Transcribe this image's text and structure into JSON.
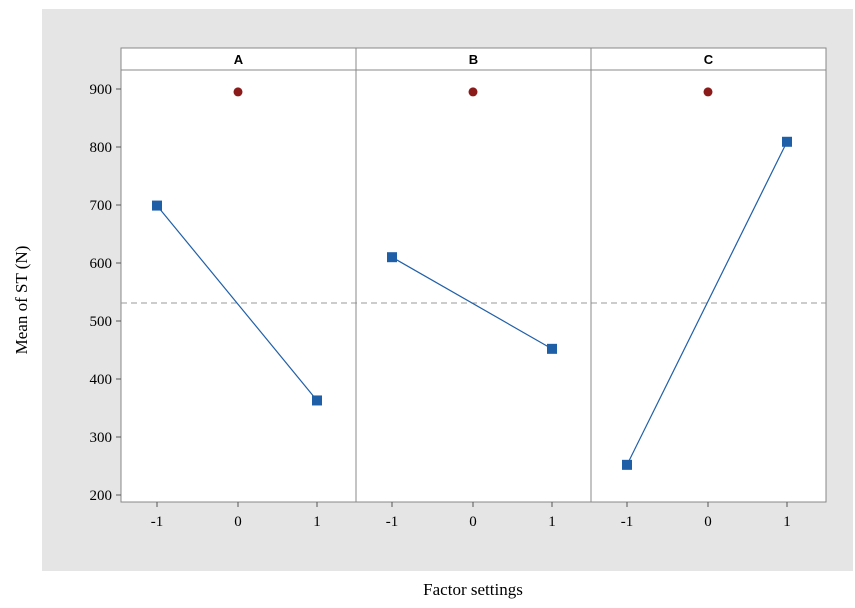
{
  "chart_data": {
    "type": "line",
    "xlabel": "Factor settings",
    "ylabel": "Mean of ST (N)",
    "ylim": [
      190,
      930
    ],
    "yticks": [
      200,
      300,
      400,
      500,
      600,
      700,
      800,
      900
    ],
    "xticks": [
      "-1",
      "0",
      "1"
    ],
    "xlim": [
      -1.5,
      1.5
    ],
    "reference_line": 531,
    "panels": [
      {
        "title": "A",
        "series": {
          "x": [
            -1,
            1
          ],
          "y": [
            699,
            363
          ]
        },
        "center_point": {
          "x": 0,
          "y": 895
        }
      },
      {
        "title": "B",
        "series": {
          "x": [
            -1,
            1
          ],
          "y": [
            610,
            452
          ]
        },
        "center_point": {
          "x": 0,
          "y": 895
        }
      },
      {
        "title": "C",
        "series": {
          "x": [
            -1,
            1
          ],
          "y": [
            252,
            809
          ]
        },
        "center_point": {
          "x": 0,
          "y": 895
        }
      }
    ],
    "grid": false,
    "colors": {
      "series": "#1f5fa8",
      "center_point": "#8b1a1a",
      "reference": "#999999"
    }
  }
}
